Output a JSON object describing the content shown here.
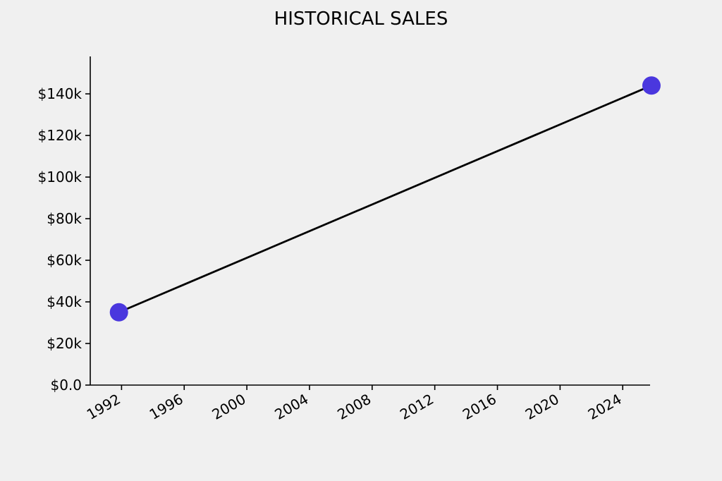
{
  "chart_data": {
    "type": "line",
    "title": "HISTORICAL SALES",
    "xlabel": "",
    "ylabel": "",
    "x_axis_kind": "date",
    "xlim": [
      "1990-01-01",
      "2025-09-30"
    ],
    "ylim": [
      0,
      158000
    ],
    "x_ticks": [
      "1992",
      "1996",
      "2000",
      "2004",
      "2008",
      "2012",
      "2016",
      "2020",
      "2024"
    ],
    "y_ticks": [
      {
        "value": 0,
        "label": "$0.0"
      },
      {
        "value": 20000,
        "label": "$20k"
      },
      {
        "value": 40000,
        "label": "$40k"
      },
      {
        "value": 60000,
        "label": "$60k"
      },
      {
        "value": 80000,
        "label": "$80k"
      },
      {
        "value": 100000,
        "label": "$100k"
      },
      {
        "value": 120000,
        "label": "$120k"
      },
      {
        "value": 140000,
        "label": "$140k"
      }
    ],
    "grid": false,
    "legend": "none",
    "series": [
      {
        "points": [
          {
            "x": "1991-11-01",
            "y": 35000
          },
          {
            "x": "2025-11-01",
            "y": 144000
          }
        ],
        "line_color": "#000000",
        "marker_color": "#4a37de"
      }
    ]
  }
}
